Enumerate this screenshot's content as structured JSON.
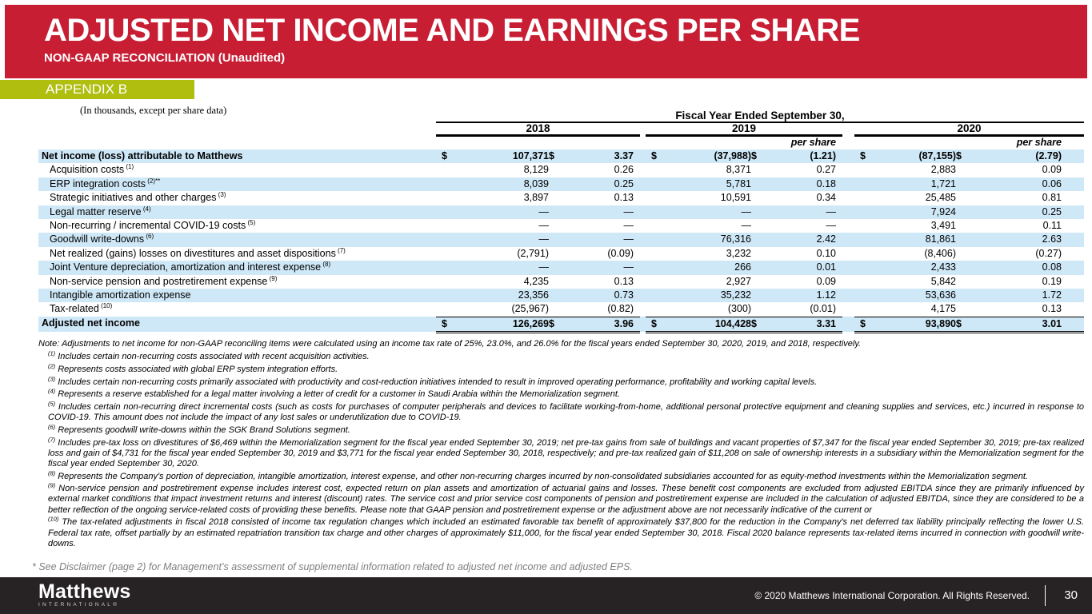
{
  "slide": {
    "title": "ADJUSTED NET INCOME AND EARNINGS PER SHARE",
    "subtitle": "NON-GAAP RECONCILIATION (Unaudited)",
    "appendix_label": "APPENDIX B",
    "units_note": "(In thousands, except per share data)"
  },
  "colors": {
    "brand_red": "#C81E34",
    "brand_green": "#AFBE0F",
    "stripe_blue": "#CFE8F7",
    "footer_dark": "#272223"
  },
  "table": {
    "group_header": "Fiscal Year Ended September 30,",
    "years": [
      "2018",
      "2019",
      "2020"
    ],
    "per_share_label": "per share",
    "dollar_sign": "$",
    "rows": [
      {
        "label": "Net income (loss) attributable to Matthews",
        "sup": "",
        "emphasis": true,
        "dollar": true,
        "values": [
          "107,371",
          "3.37",
          "(37,988)",
          "(1.21)",
          "(87,155)",
          "(2.79)"
        ]
      },
      {
        "label": "Acquisition costs",
        "sup": "(1)",
        "emphasis": false,
        "dollar": false,
        "values": [
          "8,129",
          "0.26",
          "8,371",
          "0.27",
          "2,883",
          "0.09"
        ]
      },
      {
        "label": "ERP integration costs",
        "sup": "(2)**",
        "emphasis": false,
        "dollar": false,
        "values": [
          "8,039",
          "0.25",
          "5,781",
          "0.18",
          "1,721",
          "0.06"
        ]
      },
      {
        "label": "Strategic initiatives and other charges",
        "sup": "(3)",
        "emphasis": false,
        "dollar": false,
        "values": [
          "3,897",
          "0.13",
          "10,591",
          "0.34",
          "25,485",
          "0.81"
        ]
      },
      {
        "label": "Legal matter reserve",
        "sup": "(4)",
        "emphasis": false,
        "dollar": false,
        "values": [
          "—",
          "—",
          "—",
          "—",
          "7,924",
          "0.25"
        ]
      },
      {
        "label": "Non-recurring / incremental COVID-19 costs",
        "sup": "(5)",
        "emphasis": false,
        "dollar": false,
        "values": [
          "—",
          "—",
          "—",
          "—",
          "3,491",
          "0.11"
        ]
      },
      {
        "label": "Goodwill write-downs",
        "sup": "(6)",
        "emphasis": false,
        "dollar": false,
        "values": [
          "—",
          "—",
          "76,316",
          "2.42",
          "81,861",
          "2.63"
        ]
      },
      {
        "label": "Net realized (gains) losses on divestitures and asset dispositions",
        "sup": "(7)",
        "emphasis": false,
        "dollar": false,
        "values": [
          "(2,791)",
          "(0.09)",
          "3,232",
          "0.10",
          "(8,406)",
          "(0.27)"
        ]
      },
      {
        "label": "Joint Venture depreciation, amortization and interest expense",
        "sup": "(8)",
        "emphasis": false,
        "dollar": false,
        "values": [
          "—",
          "—",
          "266",
          "0.01",
          "2,433",
          "0.08"
        ]
      },
      {
        "label": "Non-service pension and postretirement expense",
        "sup": "(9)",
        "emphasis": false,
        "dollar": false,
        "values": [
          "4,235",
          "0.13",
          "2,927",
          "0.09",
          "5,842",
          "0.19"
        ]
      },
      {
        "label": "Intangible amortization expense",
        "sup": "",
        "emphasis": false,
        "dollar": false,
        "values": [
          "23,356",
          "0.73",
          "35,232",
          "1.12",
          "53,636",
          "1.72"
        ]
      },
      {
        "label": "Tax-related",
        "sup": "(10)",
        "emphasis": false,
        "dollar": false,
        "values": [
          "(25,967)",
          "(0.82)",
          "(300)",
          "(0.01)",
          "4,175",
          "0.13"
        ]
      }
    ],
    "total_row": {
      "label": "Adjusted net income",
      "sup": "",
      "emphasis": true,
      "dollar": true,
      "values": [
        "126,269",
        "3.96",
        "104,428",
        "3.31",
        "93,890",
        "3.01"
      ]
    }
  },
  "notes": {
    "note": "Note:  Adjustments to net income for non-GAAP reconciling items were calculated using an income tax rate of 25%, 23.0%, and 26.0% for the fiscal years ended September 30, 2020, 2019, and 2018, respectively.",
    "footnotes": [
      {
        "sup": "(1)",
        "text": "Includes certain non-recurring costs associated with recent acquisition activities."
      },
      {
        "sup": "(2)",
        "text": "Represents costs associated with global ERP system integration efforts."
      },
      {
        "sup": "(3)",
        "text": "Includes certain non-recurring costs primarily associated with productivity and cost-reduction initiatives intended to result in improved operating performance, profitability and working capital levels."
      },
      {
        "sup": "(4)",
        "text": "Represents a reserve established for a legal matter involving a letter of credit for a customer in Saudi Arabia within the Memorialization segment."
      },
      {
        "sup": "(5)",
        "text": "Includes certain non-recurring direct incremental costs (such as costs for purchases of computer peripherals and devices to facilitate working-from-home, additional personal protective equipment and cleaning supplies and services, etc.) incurred in response to COVID-19. This amount does not include the impact of any lost sales or underutilization due to COVID-19."
      },
      {
        "sup": "(6)",
        "text": "Represents goodwill write-downs within the SGK Brand Solutions segment."
      },
      {
        "sup": "(7)",
        "text": "Includes pre-tax loss on divestitures of $6,469 within the Memorialization segment for the fiscal year ended September 30, 2019; net pre-tax gains from sale of buildings and vacant properties of $7,347 for the fiscal year ended September 30, 2019; pre-tax realized loss and gain of $4,731 for the fiscal year ended September 30, 2019 and $3,771 for the fiscal year ended September 30, 2018, respectively; and pre-tax realized gain of $11,208 on sale of ownership interests in a subsidiary within the Memorialization segment for the fiscal year ended September 30, 2020."
      },
      {
        "sup": "(8)",
        "text": "Represents the Company's portion of depreciation, intangible amortization, interest expense, and other non-recurring charges incurred by non-consolidated subsidiaries accounted for as equity-method investments within the Memorialization segment."
      },
      {
        "sup": "(9)",
        "text": "Non-service pension and postretirement expense includes interest cost, expected return on plan assets and amortization of actuarial gains and losses. These benefit cost components are excluded from adjusted EBITDA since they are primarily influenced by external market conditions that impact investment returns and interest (discount) rates. The service cost and prior service cost components of pension and postretirement expense are included in the calculation of adjusted EBITDA, since they are considered to be a better reflection of the ongoing service-related costs of providing these benefits. Please note that GAAP pension and postretirement expense or the adjustment above are not necessarily indicative of the current or"
      },
      {
        "sup": "(10)",
        "text": "The tax-related adjustments in fiscal 2018 consisted of income tax regulation changes which included an estimated favorable tax benefit of approximately $37,800 for the reduction in the Company's net deferred tax liability principally reflecting the lower U.S. Federal tax rate, offset partially by an estimated repatriation transition tax charge and other charges of approximately $11,000, for the fiscal year ended September 30, 2018.  Fiscal 2020 balance represents tax-related items incurred in connection with goodwill write-downs."
      }
    ]
  },
  "disclaimer": "* See Disclaimer (page 2) for Management’s assessment of supplemental information related to adjusted net income and adjusted EPS.",
  "footer": {
    "logo_primary": "Matthews",
    "logo_secondary": "INTERNATIONAL®",
    "copyright": "© 2020 Matthews International Corporation. All Rights Reserved.",
    "page_number": "30"
  }
}
